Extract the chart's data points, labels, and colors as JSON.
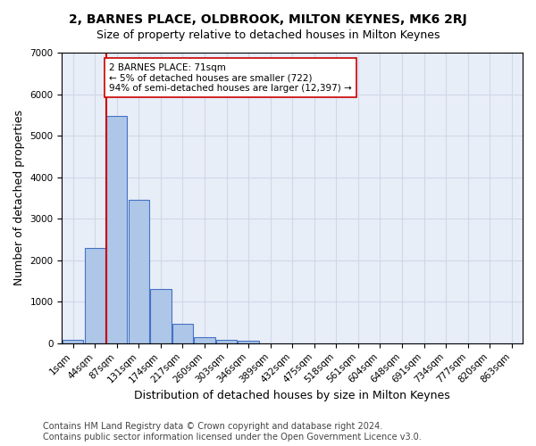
{
  "title": "2, BARNES PLACE, OLDBROOK, MILTON KEYNES, MK6 2RJ",
  "subtitle": "Size of property relative to detached houses in Milton Keynes",
  "xlabel": "Distribution of detached houses by size in Milton Keynes",
  "ylabel": "Number of detached properties",
  "bar_values": [
    75,
    2290,
    5470,
    3450,
    1315,
    470,
    155,
    85,
    55,
    0,
    0,
    0,
    0,
    0,
    0,
    0,
    0,
    0,
    0,
    0,
    0
  ],
  "bar_labels": [
    "1sqm",
    "44sqm",
    "87sqm",
    "131sqm",
    "174sqm",
    "217sqm",
    "260sqm",
    "303sqm",
    "346sqm",
    "389sqm",
    "432sqm",
    "475sqm",
    "518sqm",
    "561sqm",
    "604sqm",
    "648sqm",
    "691sqm",
    "734sqm",
    "777sqm",
    "820sqm",
    "863sqm"
  ],
  "bar_color": "#aec6e8",
  "bar_edge_color": "#4472c4",
  "grid_color": "#d0d8e8",
  "background_color": "#e8eef8",
  "vline_x": 1.5,
  "vline_color": "#cc0000",
  "annotation_text": "2 BARNES PLACE: 71sqm\n← 5% of detached houses are smaller (722)\n94% of semi-detached houses are larger (12,397) →",
  "annotation_box_color": "#ffffff",
  "annotation_box_edge_color": "#cc0000",
  "ylim": [
    0,
    7000
  ],
  "yticks": [
    0,
    1000,
    2000,
    3000,
    4000,
    5000,
    6000,
    7000
  ],
  "footer_line1": "Contains HM Land Registry data © Crown copyright and database right 2024.",
  "footer_line2": "Contains public sector information licensed under the Open Government Licence v3.0.",
  "title_fontsize": 10,
  "subtitle_fontsize": 9,
  "xlabel_fontsize": 9,
  "ylabel_fontsize": 9,
  "tick_fontsize": 7.5,
  "footer_fontsize": 7
}
